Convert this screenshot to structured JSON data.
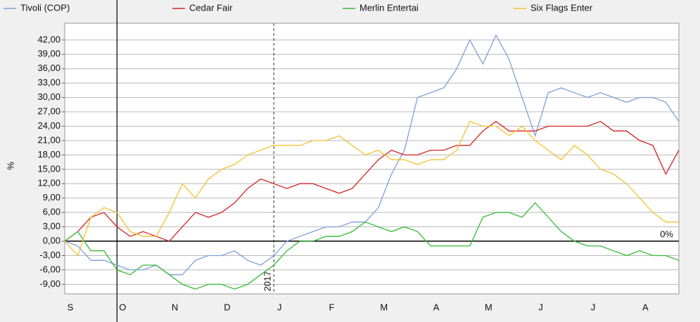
{
  "chart_data": {
    "type": "line",
    "ylabel": "%",
    "categories": [
      "S",
      null,
      null,
      null,
      "O",
      null,
      null,
      null,
      "N",
      null,
      null,
      null,
      "D",
      null,
      null,
      null,
      "J",
      null,
      null,
      null,
      "F",
      null,
      null,
      null,
      "M",
      null,
      null,
      null,
      "A",
      null,
      null,
      null,
      "M",
      null,
      null,
      null,
      "J",
      null,
      null,
      null,
      "J",
      null,
      null,
      null,
      "A",
      null,
      null,
      null
    ],
    "series": [
      {
        "name": "Tivoli (COP)",
        "color": "#7e9fd8",
        "values": [
          0,
          -1,
          -4,
          -4,
          -5,
          -6,
          -6,
          -5,
          -7,
          -7,
          -4,
          -3,
          -3,
          -2,
          -4,
          -5,
          -3,
          0,
          1,
          2,
          3,
          3,
          4,
          4,
          7,
          14,
          19,
          30,
          31,
          32,
          36,
          42,
          37,
          43,
          38,
          30,
          22,
          31,
          32,
          31,
          30,
          31,
          30,
          29,
          30,
          30,
          29,
          25
        ]
      },
      {
        "name": "Cedar Fair",
        "color": "#d42222",
        "values": [
          0,
          2,
          5,
          6,
          3,
          1,
          2,
          1,
          0,
          3,
          6,
          5,
          6,
          8,
          11,
          13,
          12,
          11,
          12,
          12,
          11,
          10,
          11,
          14,
          17,
          19,
          18,
          18,
          19,
          19,
          20,
          20,
          23,
          25,
          23,
          23,
          23,
          24,
          24,
          24,
          24,
          25,
          23,
          23,
          21,
          20,
          14,
          19
        ]
      },
      {
        "name": "Merlin Entertai",
        "color": "#33bb33",
        "values": [
          0,
          2,
          -2,
          -2,
          -6,
          -7,
          -5,
          -5,
          -7,
          -9,
          -10,
          -9,
          -9,
          -10,
          -9,
          -7,
          -5,
          -2,
          0,
          0,
          1,
          1,
          2,
          4,
          3,
          2,
          3,
          2,
          -1,
          -1,
          -1,
          -1,
          5,
          6,
          6,
          5,
          8,
          5,
          2,
          0,
          -1,
          -1,
          -2,
          -3,
          -2,
          -3,
          -3,
          -4
        ]
      },
      {
        "name": "Six Flags Enter",
        "color": "#f5c030",
        "values": [
          0,
          -3,
          5,
          7,
          6,
          2,
          1,
          1,
          6,
          12,
          9,
          13,
          15,
          16,
          18,
          19,
          20,
          20,
          20,
          21,
          21,
          22,
          20,
          18,
          19,
          17,
          17,
          16,
          17,
          17,
          19,
          25,
          24,
          24,
          22,
          24,
          21,
          19,
          17,
          20,
          18,
          15,
          14,
          12,
          9,
          6,
          4,
          4
        ]
      }
    ],
    "ylim": [
      -11,
      45.5
    ],
    "yticks": [
      {
        "value": -9,
        "label": "-9,00"
      },
      {
        "value": -6,
        "label": "-6,00"
      },
      {
        "value": -3,
        "label": "-3,00"
      },
      {
        "value": 0,
        "label": "0,00"
      },
      {
        "value": 3,
        "label": "3,00"
      },
      {
        "value": 6,
        "label": "6,00"
      },
      {
        "value": 9,
        "label": "9,00"
      },
      {
        "value": 12,
        "label": "12,00"
      },
      {
        "value": 15,
        "label": "15,00"
      },
      {
        "value": 18,
        "label": "18,00"
      },
      {
        "value": 21,
        "label": "21,00"
      },
      {
        "value": 24,
        "label": "24,00"
      },
      {
        "value": 27,
        "label": "27,00"
      },
      {
        "value": 30,
        "label": "30,00"
      },
      {
        "value": 33,
        "label": "33,00"
      },
      {
        "value": 36,
        "label": "36,00"
      },
      {
        "value": 39,
        "label": "39,00"
      },
      {
        "value": 42,
        "label": "42,00"
      }
    ],
    "grid": true,
    "year_annotation": "2017",
    "zero_annotation": "0%"
  }
}
